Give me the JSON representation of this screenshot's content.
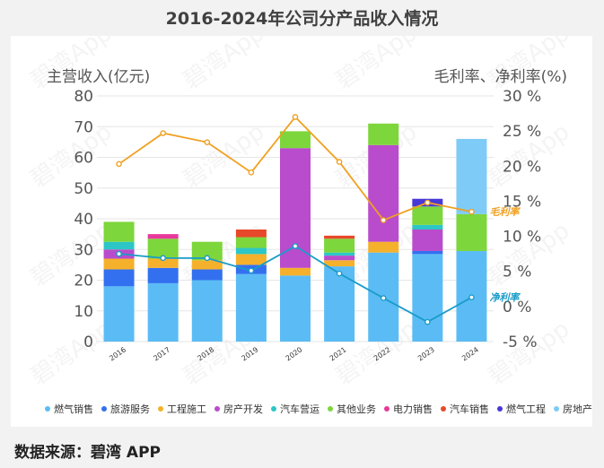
{
  "title": "2016-2024年公司分产品收入情况",
  "source": "数据来源：碧湾 APP",
  "watermark": "碧湾App",
  "chart_data": {
    "type": "bar",
    "stacked": true,
    "categories": [
      "2016",
      "2017",
      "2018",
      "2019",
      "2020",
      "2021",
      "2022",
      "2023",
      "2024"
    ],
    "ylabel": "主营收入(亿元)",
    "ylabel_right": "毛利率、净利率(%)",
    "ylim": [
      0,
      80
    ],
    "yticks": [
      "0",
      "10",
      "20",
      "30",
      "40",
      "50",
      "60",
      "70",
      "80"
    ],
    "ylim_right": [
      -5,
      30
    ],
    "yticks_right": [
      "-5 %",
      "0 %",
      "5 %",
      "10 %",
      "15 %",
      "20 %",
      "25 %",
      "30 %"
    ],
    "legend_position": "bottom",
    "series": [
      {
        "name": "燃气销售",
        "color": "#5bbcf5",
        "values": [
          18,
          19,
          20,
          22,
          21.5,
          24.5,
          29,
          28.5,
          29.5
        ]
      },
      {
        "name": "旅游服务",
        "color": "#3370f0",
        "values": [
          5.5,
          5,
          3.5,
          3,
          0,
          0,
          0,
          1,
          0
        ]
      },
      {
        "name": "工程施工",
        "color": "#f5b12b",
        "values": [
          3.5,
          3,
          3,
          3.5,
          2.5,
          2,
          3.5,
          0,
          0
        ]
      },
      {
        "name": "房产开发",
        "color": "#b94ccc",
        "values": [
          3,
          0,
          0,
          0,
          39,
          1.5,
          31.5,
          7,
          0
        ]
      },
      {
        "name": "汽车营运",
        "color": "#2cc6c6",
        "values": [
          2.5,
          0,
          0,
          2,
          0,
          1,
          0,
          1.5,
          0
        ]
      },
      {
        "name": "其他业务",
        "color": "#7dd63b",
        "values": [
          6.5,
          6.5,
          6,
          3.5,
          5.5,
          4.5,
          7,
          6,
          12
        ]
      },
      {
        "name": "电力销售",
        "color": "#e8399b",
        "values": [
          0,
          1.5,
          0,
          0,
          0,
          0,
          0,
          0,
          0
        ]
      },
      {
        "name": "汽车销售",
        "color": "#e8482a",
        "values": [
          0,
          0,
          0,
          2.5,
          0,
          1,
          0,
          0,
          0
        ]
      },
      {
        "name": "燃气工程",
        "color": "#4838d8",
        "values": [
          0,
          0,
          0,
          0,
          0,
          0,
          0,
          2.5,
          0
        ]
      },
      {
        "name": "房地产开发",
        "color": "#7fcbf7",
        "values": [
          0,
          0,
          0,
          0,
          0,
          0,
          0,
          0,
          24.5
        ]
      }
    ],
    "lines": [
      {
        "name": "毛利率",
        "color": "#f0a020",
        "values": [
          20.3,
          24.7,
          23.4,
          19.1,
          27.0,
          20.6,
          12.3,
          14.8,
          13.5
        ]
      },
      {
        "name": "净利率",
        "color": "#1a9cc8",
        "values": [
          7.5,
          6.9,
          6.9,
          5.1,
          8.6,
          4.7,
          1.2,
          -2.2,
          1.3
        ]
      }
    ]
  }
}
